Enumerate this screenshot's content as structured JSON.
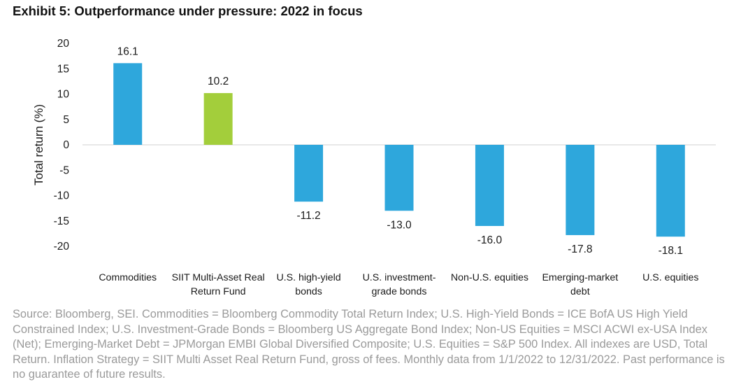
{
  "exhibit_title": "Exhibit 5: Outperformance under pressure: 2022 in focus",
  "chart_data": {
    "type": "bar",
    "title": "Exhibit 5: Outperformance under pressure: 2022 in focus",
    "xlabel": "",
    "ylabel": "Total return (%)",
    "ylim": [
      -20,
      20
    ],
    "yticks": [
      20,
      15,
      10,
      5,
      0,
      -5,
      -10,
      -15,
      -20
    ],
    "grid": false,
    "categories": [
      [
        "Commodities"
      ],
      [
        "SIIT Multi-Asset Real",
        "Return Fund"
      ],
      [
        "U.S. high-yield",
        "bonds"
      ],
      [
        "U.S. investment-",
        "grade bonds"
      ],
      [
        "Non-U.S. equities"
      ],
      [
        "Emerging-market",
        "debt"
      ],
      [
        "U.S. equities"
      ]
    ],
    "values": [
      16.1,
      10.2,
      -11.2,
      -13.0,
      -16.0,
      -17.8,
      -18.1
    ],
    "value_labels": [
      "16.1",
      "10.2",
      "-11.2",
      "-13.0",
      "-16.0",
      "-17.8",
      "-18.1"
    ],
    "colors": [
      "#2ea7dc",
      "#a3ce3b",
      "#2ea7dc",
      "#2ea7dc",
      "#2ea7dc",
      "#2ea7dc",
      "#2ea7dc"
    ]
  },
  "footnote": "Source: Bloomberg, SEI. Commodities = Bloomberg Commodity Total Return Index; U.S. High-Yield Bonds = ICE BofA US High Yield Constrained Index; U.S. Investment-Grade Bonds = Bloomberg US Aggregate Bond Index; Non-US Equities = MSCI ACWI ex-USA Index (Net); Emerging-Market Debt = JPMorgan EMBI Global Diversified Composite; U.S. Equities = S&P 500 Index. All indexes are USD, Total Return. Inflation Strategy = SIIT Multi Asset Real Return Fund, gross of fees. Monthly data from 1/1/2022 to 12/31/2022. Past performance is no guarantee of future results."
}
